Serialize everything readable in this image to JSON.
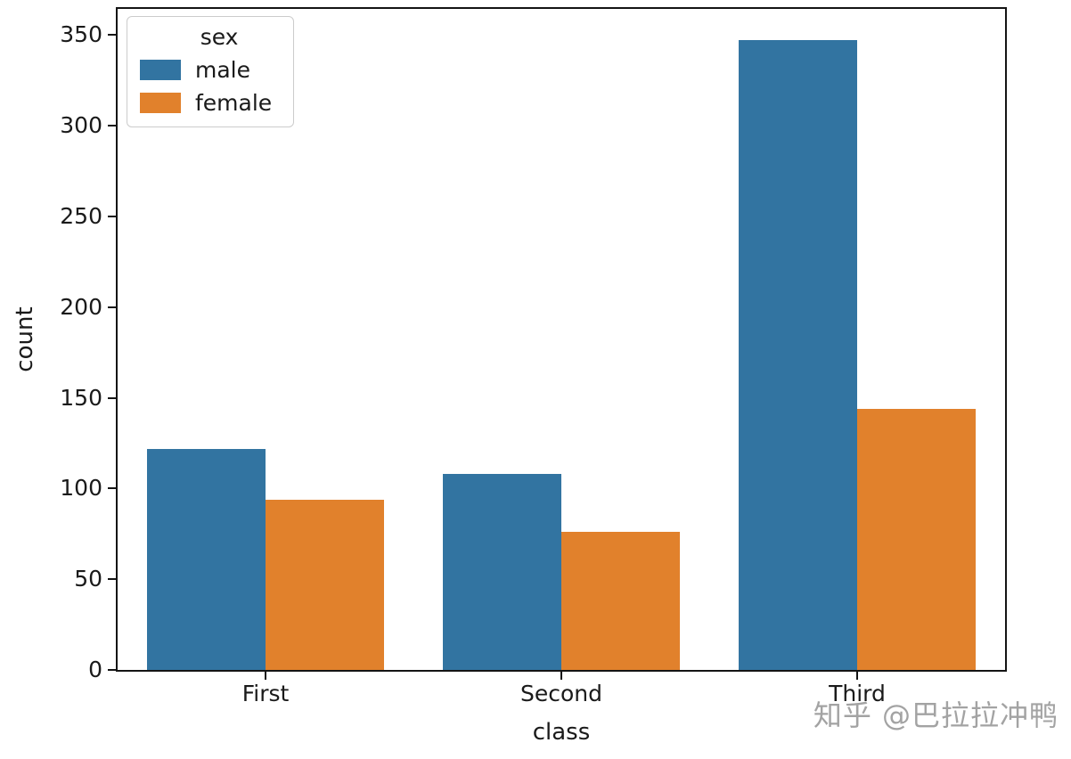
{
  "chart_data": {
    "type": "bar",
    "title": "",
    "xlabel": "class",
    "ylabel": "count",
    "categories": [
      "First",
      "Second",
      "Third"
    ],
    "series": [
      {
        "name": "male",
        "color": "#3274a1",
        "values": [
          122,
          108,
          347
        ]
      },
      {
        "name": "female",
        "color": "#e1812c",
        "values": [
          94,
          76,
          144
        ]
      }
    ],
    "ylim": [
      0,
      364.35
    ],
    "yticks": [
      0,
      50,
      100,
      150,
      200,
      250,
      300,
      350
    ],
    "grid": false,
    "legend": {
      "title": "sex",
      "position": "upper-left",
      "entries": [
        "male",
        "female"
      ]
    }
  },
  "watermark": {
    "text": "知乎 @巴拉拉冲鸭",
    "color": "#a3a3a3"
  }
}
